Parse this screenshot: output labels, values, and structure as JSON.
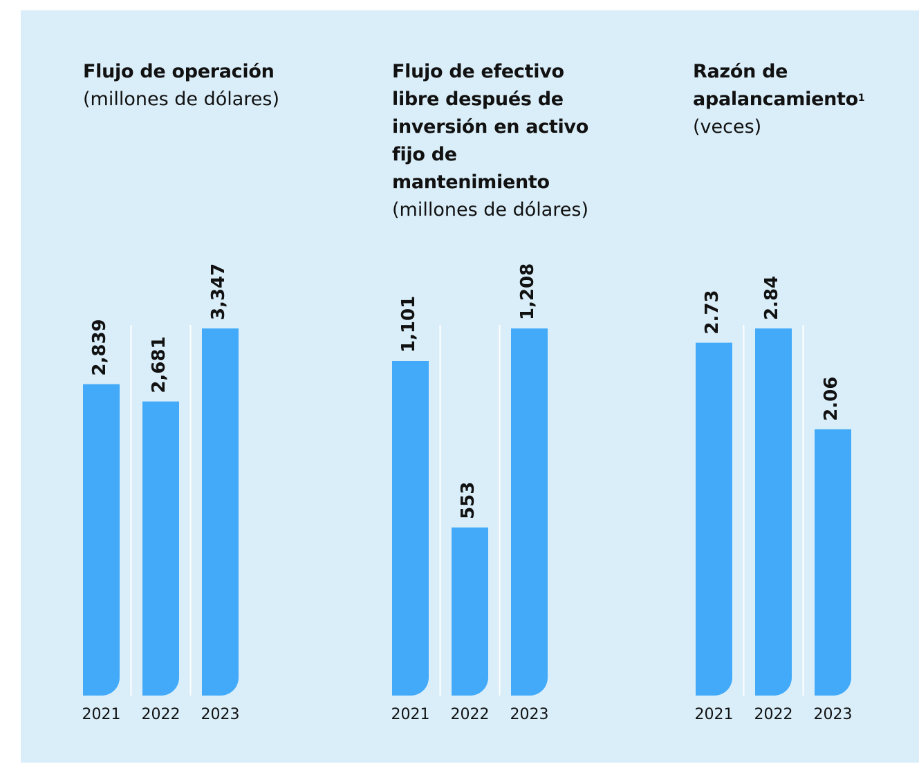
{
  "chart_data": [
    {
      "type": "bar",
      "title": "Flujo de operación",
      "subtitle": "(millones de dólares)",
      "categories": [
        "2021",
        "2022",
        "2023"
      ],
      "values": [
        2839,
        2681,
        3347
      ],
      "value_labels": [
        "2,839",
        "2,681",
        "3,347"
      ],
      "color": "#42aaf9"
    },
    {
      "type": "bar",
      "title": "Flujo de efectivo libre después de inversión en activo fijo de mantenimiento",
      "subtitle": "(millones de dólares)",
      "categories": [
        "2021",
        "2022",
        "2023"
      ],
      "values": [
        1101,
        553,
        1208
      ],
      "value_labels": [
        "1,101",
        "553",
        "1,208"
      ],
      "color": "#42aaf9"
    },
    {
      "type": "bar",
      "title": "Razón de apalancamiento",
      "footnote_mark": "1",
      "subtitle": "(veces)",
      "categories": [
        "2021",
        "2022",
        "2023"
      ],
      "values": [
        2.73,
        2.84,
        2.06
      ],
      "color": "#42aaf9"
    }
  ]
}
